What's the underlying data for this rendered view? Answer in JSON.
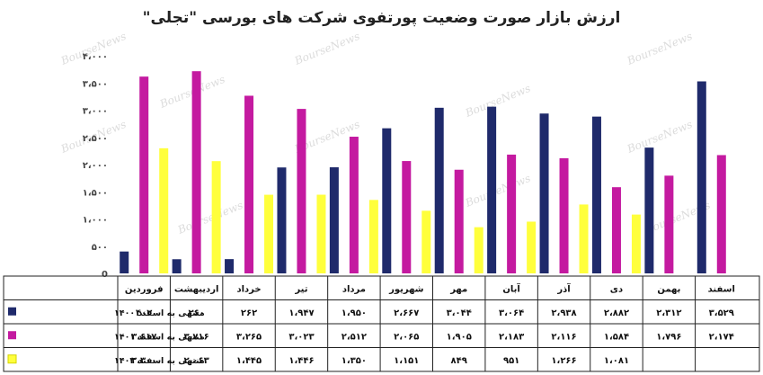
{
  "chart_data": {
    "type": "bar",
    "title": "ارزش بازار صورت وضعیت پورتفوی شرکت های بورسی \"تجلی\"",
    "categories": [
      "فروردین",
      "اردیبهشت",
      "خرداد",
      "تیر",
      "مرداد",
      "شهریور",
      "مهر",
      "آبان",
      "آذر",
      "دی",
      "بهمن",
      "اسفند"
    ],
    "ylim": [
      0,
      4000
    ],
    "yticks": [
      0,
      500,
      1000,
      1500,
      2000,
      2500,
      3000,
      3500,
      4000
    ],
    "ytick_labels": [
      "0",
      "۵۰۰",
      "۱،۰۰۰",
      "۱،۵۰۰",
      "۲،۰۰۰",
      "۲،۵۰۰",
      "۳،۰۰۰",
      "۳،۵۰۰",
      "۴،۰۰۰"
    ],
    "grid": false,
    "legend_position": "table-left",
    "watermark": "BourseNews",
    "series": [
      {
        "name": "منتهی به اسفند ۱۴۰۰",
        "color": "#1f2a6b",
        "values": [
          402,
          260,
          262,
          1947,
          1950,
          2667,
          3044,
          3064,
          2938,
          2882,
          2312,
          3529
        ],
        "labels": [
          "۴۰۲",
          "۲۶۰",
          "۲۶۲",
          "۱،۹۴۷",
          "۱،۹۵۰",
          "۲،۶۶۷",
          "۳،۰۴۴",
          "۳،۰۶۴",
          "۲،۹۳۸",
          "۲،۸۸۲",
          "۲،۳۱۲",
          "۳،۵۲۹"
        ]
      },
      {
        "name": "منتهی به اسفند ۱۴۰۱",
        "color": "#c41aa0",
        "values": [
          3617,
          3716,
          3265,
          3023,
          2512,
          2065,
          1905,
          2183,
          2116,
          1584,
          1796,
          2174
        ],
        "labels": [
          "۳،۶۱۷",
          "۳،۷۱۶",
          "۳،۲۶۵",
          "۳،۰۲۳",
          "۲،۵۱۲",
          "۲،۰۶۵",
          "۱،۹۰۵",
          "۲،۱۸۳",
          "۲،۱۱۶",
          "۱،۵۸۴",
          "۱،۷۹۶",
          "۲،۱۷۴"
        ]
      },
      {
        "name": "منتهی به اسفند ۱۴۰۲",
        "color": "#ffff3c",
        "values": [
          2300,
          2063,
          1445,
          1446,
          1350,
          1151,
          849,
          951,
          1266,
          1081,
          null,
          null
        ],
        "labels": [
          "۲،۳۰۰",
          "۲،۰۶۳",
          "۱،۴۴۵",
          "۱،۴۴۶",
          "۱،۳۵۰",
          "۱،۱۵۱",
          "۸۴۹",
          "۹۵۱",
          "۱،۲۶۶",
          "۱،۰۸۱",
          "",
          ""
        ]
      }
    ]
  }
}
